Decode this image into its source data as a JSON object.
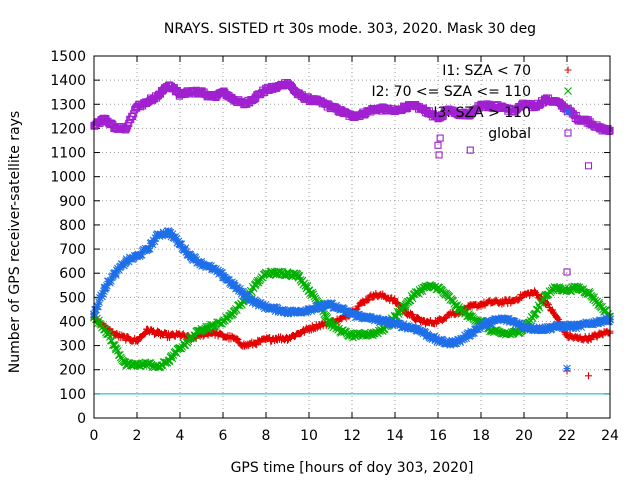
{
  "chart_data": {
    "type": "scatter",
    "title": "NRAYS. SISTED rt 30s mode. 303, 2020. Mask 30 deg",
    "xlabel": "GPS time [hours of doy 303, 2020]",
    "ylabel": "Number of GPS receiver-satellite rays",
    "xlim": [
      0,
      24
    ],
    "ylim": [
      0,
      1500
    ],
    "xticks": [
      "0",
      "2",
      "4",
      "6",
      "8",
      "10",
      "12",
      "14",
      "16",
      "18",
      "20",
      "22",
      "24"
    ],
    "yticks": [
      "0",
      "100",
      "200",
      "300",
      "400",
      "500",
      "600",
      "700",
      "800",
      "900",
      "1000",
      "1100",
      "1200",
      "1300",
      "1400",
      "1500"
    ],
    "grid": true,
    "legend_position": "top-right",
    "series": [
      {
        "name": "I1: SZA < 70",
        "color": "#e50000",
        "marker": "plus",
        "x": [
          0,
          0.5,
          1,
          1.5,
          2,
          2.5,
          3,
          3.5,
          4,
          4.5,
          5,
          5.5,
          6,
          6.5,
          7,
          7.5,
          8,
          8.5,
          9,
          9.5,
          10,
          10.5,
          11,
          11.5,
          12,
          12.5,
          13,
          13.5,
          14,
          14.5,
          15,
          15.5,
          16,
          16.5,
          17,
          17.5,
          18,
          18.5,
          19,
          19.5,
          20,
          20.5,
          21,
          21.5,
          22,
          22.5,
          23,
          23.5,
          24
        ],
        "values": [
          420,
          375,
          345,
          330,
          320,
          365,
          350,
          340,
          345,
          330,
          345,
          355,
          340,
          330,
          300,
          310,
          325,
          330,
          330,
          350,
          370,
          385,
          395,
          410,
          440,
          480,
          510,
          505,
          485,
          440,
          410,
          395,
          400,
          430,
          440,
          460,
          470,
          480,
          480,
          485,
          510,
          520,
          480,
          420,
          340,
          330,
          330,
          345,
          360
        ]
      },
      {
        "name": "I2: 70 <= SZA <= 110",
        "color": "#00b000",
        "marker": "cross",
        "x": [
          0,
          0.5,
          1,
          1.5,
          2,
          2.5,
          3,
          3.5,
          4,
          4.5,
          5,
          5.5,
          6,
          6.5,
          7,
          7.5,
          8,
          8.5,
          9,
          9.5,
          10,
          10.5,
          11,
          11.5,
          12,
          12.5,
          13,
          13.5,
          14,
          14.5,
          15,
          15.5,
          16,
          16.5,
          17,
          17.5,
          18,
          18.5,
          19,
          19.5,
          20,
          20.5,
          21,
          21.5,
          22,
          22.5,
          23,
          23.5,
          24
        ],
        "values": [
          420,
          370,
          290,
          220,
          220,
          225,
          210,
          240,
          290,
          330,
          370,
          380,
          400,
          440,
          490,
          550,
          600,
          600,
          600,
          590,
          530,
          470,
          390,
          360,
          340,
          345,
          350,
          370,
          420,
          470,
          520,
          545,
          540,
          500,
          450,
          420,
          400,
          360,
          350,
          350,
          370,
          430,
          510,
          540,
          530,
          540,
          520,
          470,
          420
        ]
      },
      {
        "name": "I3: SZA > 110",
        "color": "#1e6fe8",
        "marker": "star",
        "x": [
          0,
          0.5,
          1,
          1.5,
          2,
          2.5,
          3,
          3.5,
          4,
          4.5,
          5,
          5.5,
          6,
          6.5,
          7,
          7.5,
          8,
          8.5,
          9,
          9.5,
          10,
          10.5,
          11,
          11.5,
          12,
          12.5,
          13,
          13.5,
          14,
          14.5,
          15,
          15.5,
          16,
          16.5,
          17,
          17.5,
          18,
          18.5,
          19,
          19.5,
          20,
          20.5,
          21,
          21.5,
          22,
          22.5,
          23,
          23.5,
          24
        ],
        "values": [
          430,
          540,
          600,
          650,
          670,
          700,
          760,
          770,
          720,
          670,
          640,
          620,
          590,
          550,
          510,
          480,
          460,
          450,
          440,
          440,
          450,
          460,
          470,
          450,
          430,
          420,
          410,
          400,
          390,
          380,
          370,
          345,
          320,
          310,
          320,
          350,
          380,
          400,
          410,
          400,
          380,
          370,
          370,
          380,
          380,
          380,
          390,
          400,
          410
        ]
      },
      {
        "name": "global",
        "color": "#a020d0",
        "marker": "square",
        "x": [
          0,
          0.5,
          1,
          1.5,
          2,
          2.5,
          3,
          3.5,
          4,
          4.5,
          5,
          5.5,
          6,
          6.5,
          7,
          7.5,
          8,
          8.5,
          9,
          9.5,
          10,
          10.5,
          11,
          11.5,
          12,
          12.5,
          13,
          13.5,
          14,
          14.5,
          15,
          15.5,
          16,
          16.5,
          17,
          17.5,
          18,
          18.5,
          19,
          19.5,
          20,
          20.5,
          21,
          21.5,
          22,
          22.5,
          23,
          23.5,
          24
        ],
        "values": [
          1210,
          1240,
          1200,
          1200,
          1290,
          1310,
          1340,
          1380,
          1340,
          1350,
          1350,
          1330,
          1350,
          1320,
          1300,
          1330,
          1360,
          1370,
          1390,
          1340,
          1320,
          1310,
          1290,
          1270,
          1250,
          1260,
          1280,
          1280,
          1270,
          1290,
          1290,
          1270,
          1240,
          1280,
          1260,
          1260,
          1300,
          1290,
          1290,
          1270,
          1300,
          1290,
          1320,
          1310,
          1280,
          1240,
          1230,
          1200,
          1190
        ]
      }
    ],
    "outliers": [
      {
        "series": "global",
        "x": 16,
        "y": 1130
      },
      {
        "series": "global",
        "x": 16.05,
        "y": 1090
      },
      {
        "series": "global",
        "x": 16.1,
        "y": 1160
      },
      {
        "series": "global",
        "x": 17.5,
        "y": 1110
      },
      {
        "series": "global",
        "x": 22,
        "y": 605
      },
      {
        "series": "global",
        "x": 23,
        "y": 1045
      },
      {
        "series": "I1: SZA < 70",
        "x": 22,
        "y": 195
      },
      {
        "series": "I1: SZA < 70",
        "x": 23,
        "y": 175
      },
      {
        "series": "I3: SZA > 110",
        "x": 22,
        "y": 205
      }
    ],
    "reference_line": {
      "y": 100,
      "color": "#00c0c0"
    }
  }
}
